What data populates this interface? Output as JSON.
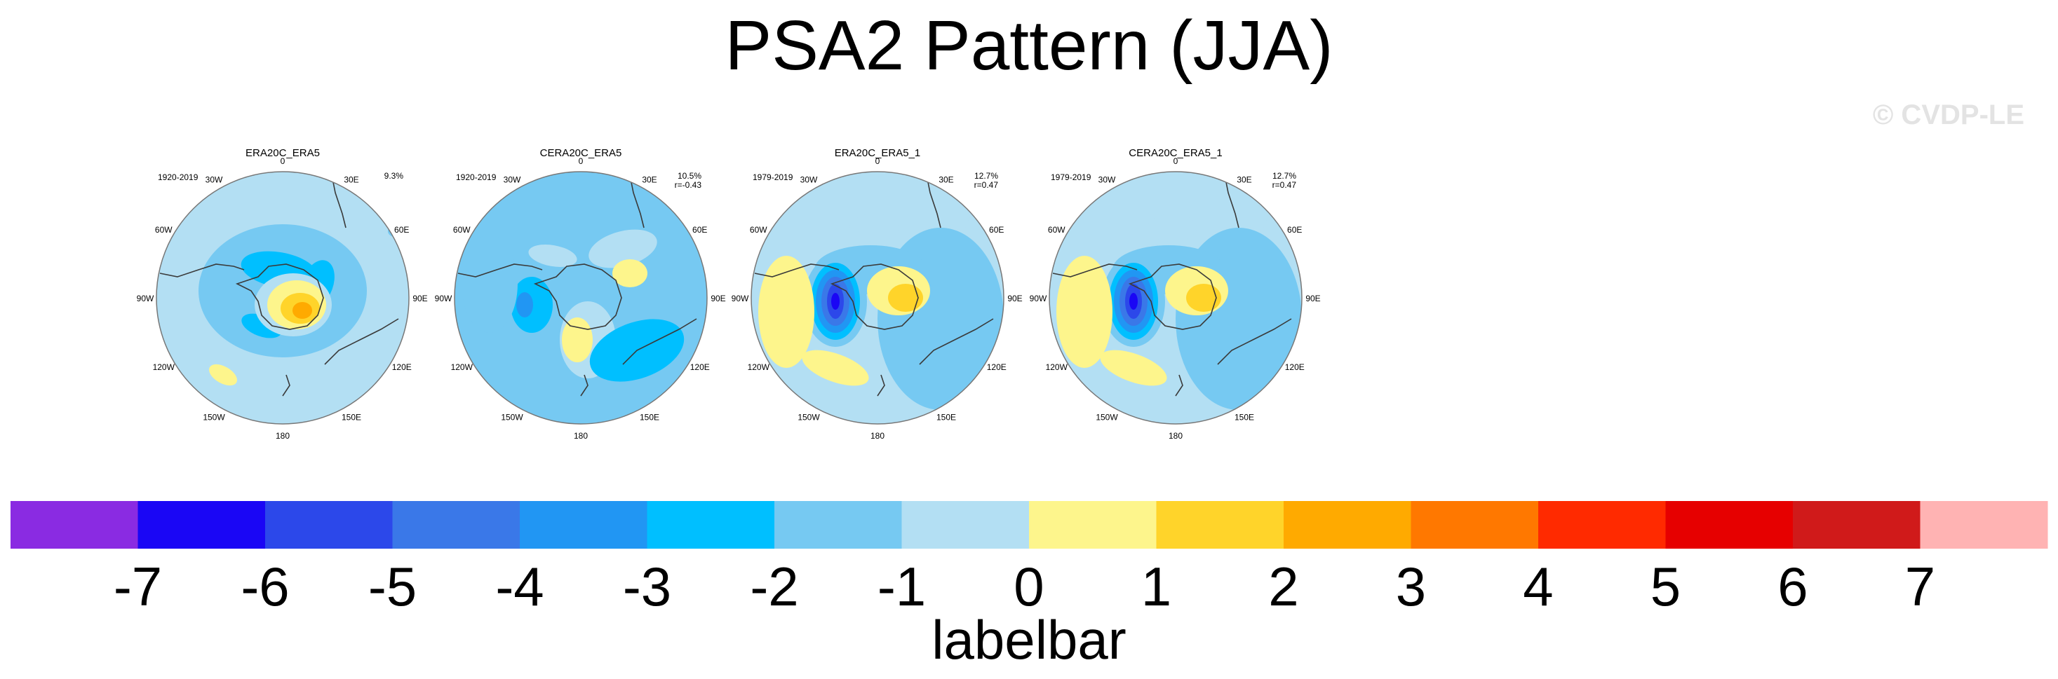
{
  "title": "PSA2 Pattern (JJA)",
  "watermark": "© CVDP-LE",
  "colors": {
    "coast": "#3a3a3a",
    "frame": "#777777"
  },
  "longitude_labels": [
    "0",
    "30E",
    "60E",
    "90E",
    "120E",
    "150E",
    "180",
    "150W",
    "120W",
    "90W",
    "60W",
    "30W"
  ],
  "chart_data": {
    "type": "heatmap",
    "projection": "south-polar-stereographic",
    "panels": [
      {
        "title": "ERA20C_ERA5",
        "period": "1920-2019",
        "pct": "9.3%",
        "corr": ""
      },
      {
        "title": "CERA20C_ERA5",
        "period": "1920-2019",
        "pct": "10.5%",
        "corr": "r=-0.43"
      },
      {
        "title": "ERA20C_ERA5_1",
        "period": "1979-2019",
        "pct": "12.7%",
        "corr": "r=0.47"
      },
      {
        "title": "CERA20C_ERA5_1",
        "period": "1979-2019",
        "pct": "12.7%",
        "corr": "r=0.47"
      }
    ],
    "colorbar": {
      "label": "labelbar",
      "ticks": [
        "-7",
        "-6",
        "-5",
        "-4",
        "-3",
        "-2",
        "-1",
        "0",
        "1",
        "2",
        "3",
        "4",
        "5",
        "6",
        "7"
      ],
      "colors": [
        "#8a2be2",
        "#1a06f5",
        "#2c48ea",
        "#3a78e8",
        "#2196f3",
        "#00bfff",
        "#76c9f2",
        "#b3dff3",
        "#fdf58c",
        "#ffd42a",
        "#ffaa00",
        "#ff7800",
        "#ff2a00",
        "#e60000",
        "#d01a1a",
        "#ffb3b3"
      ]
    }
  }
}
